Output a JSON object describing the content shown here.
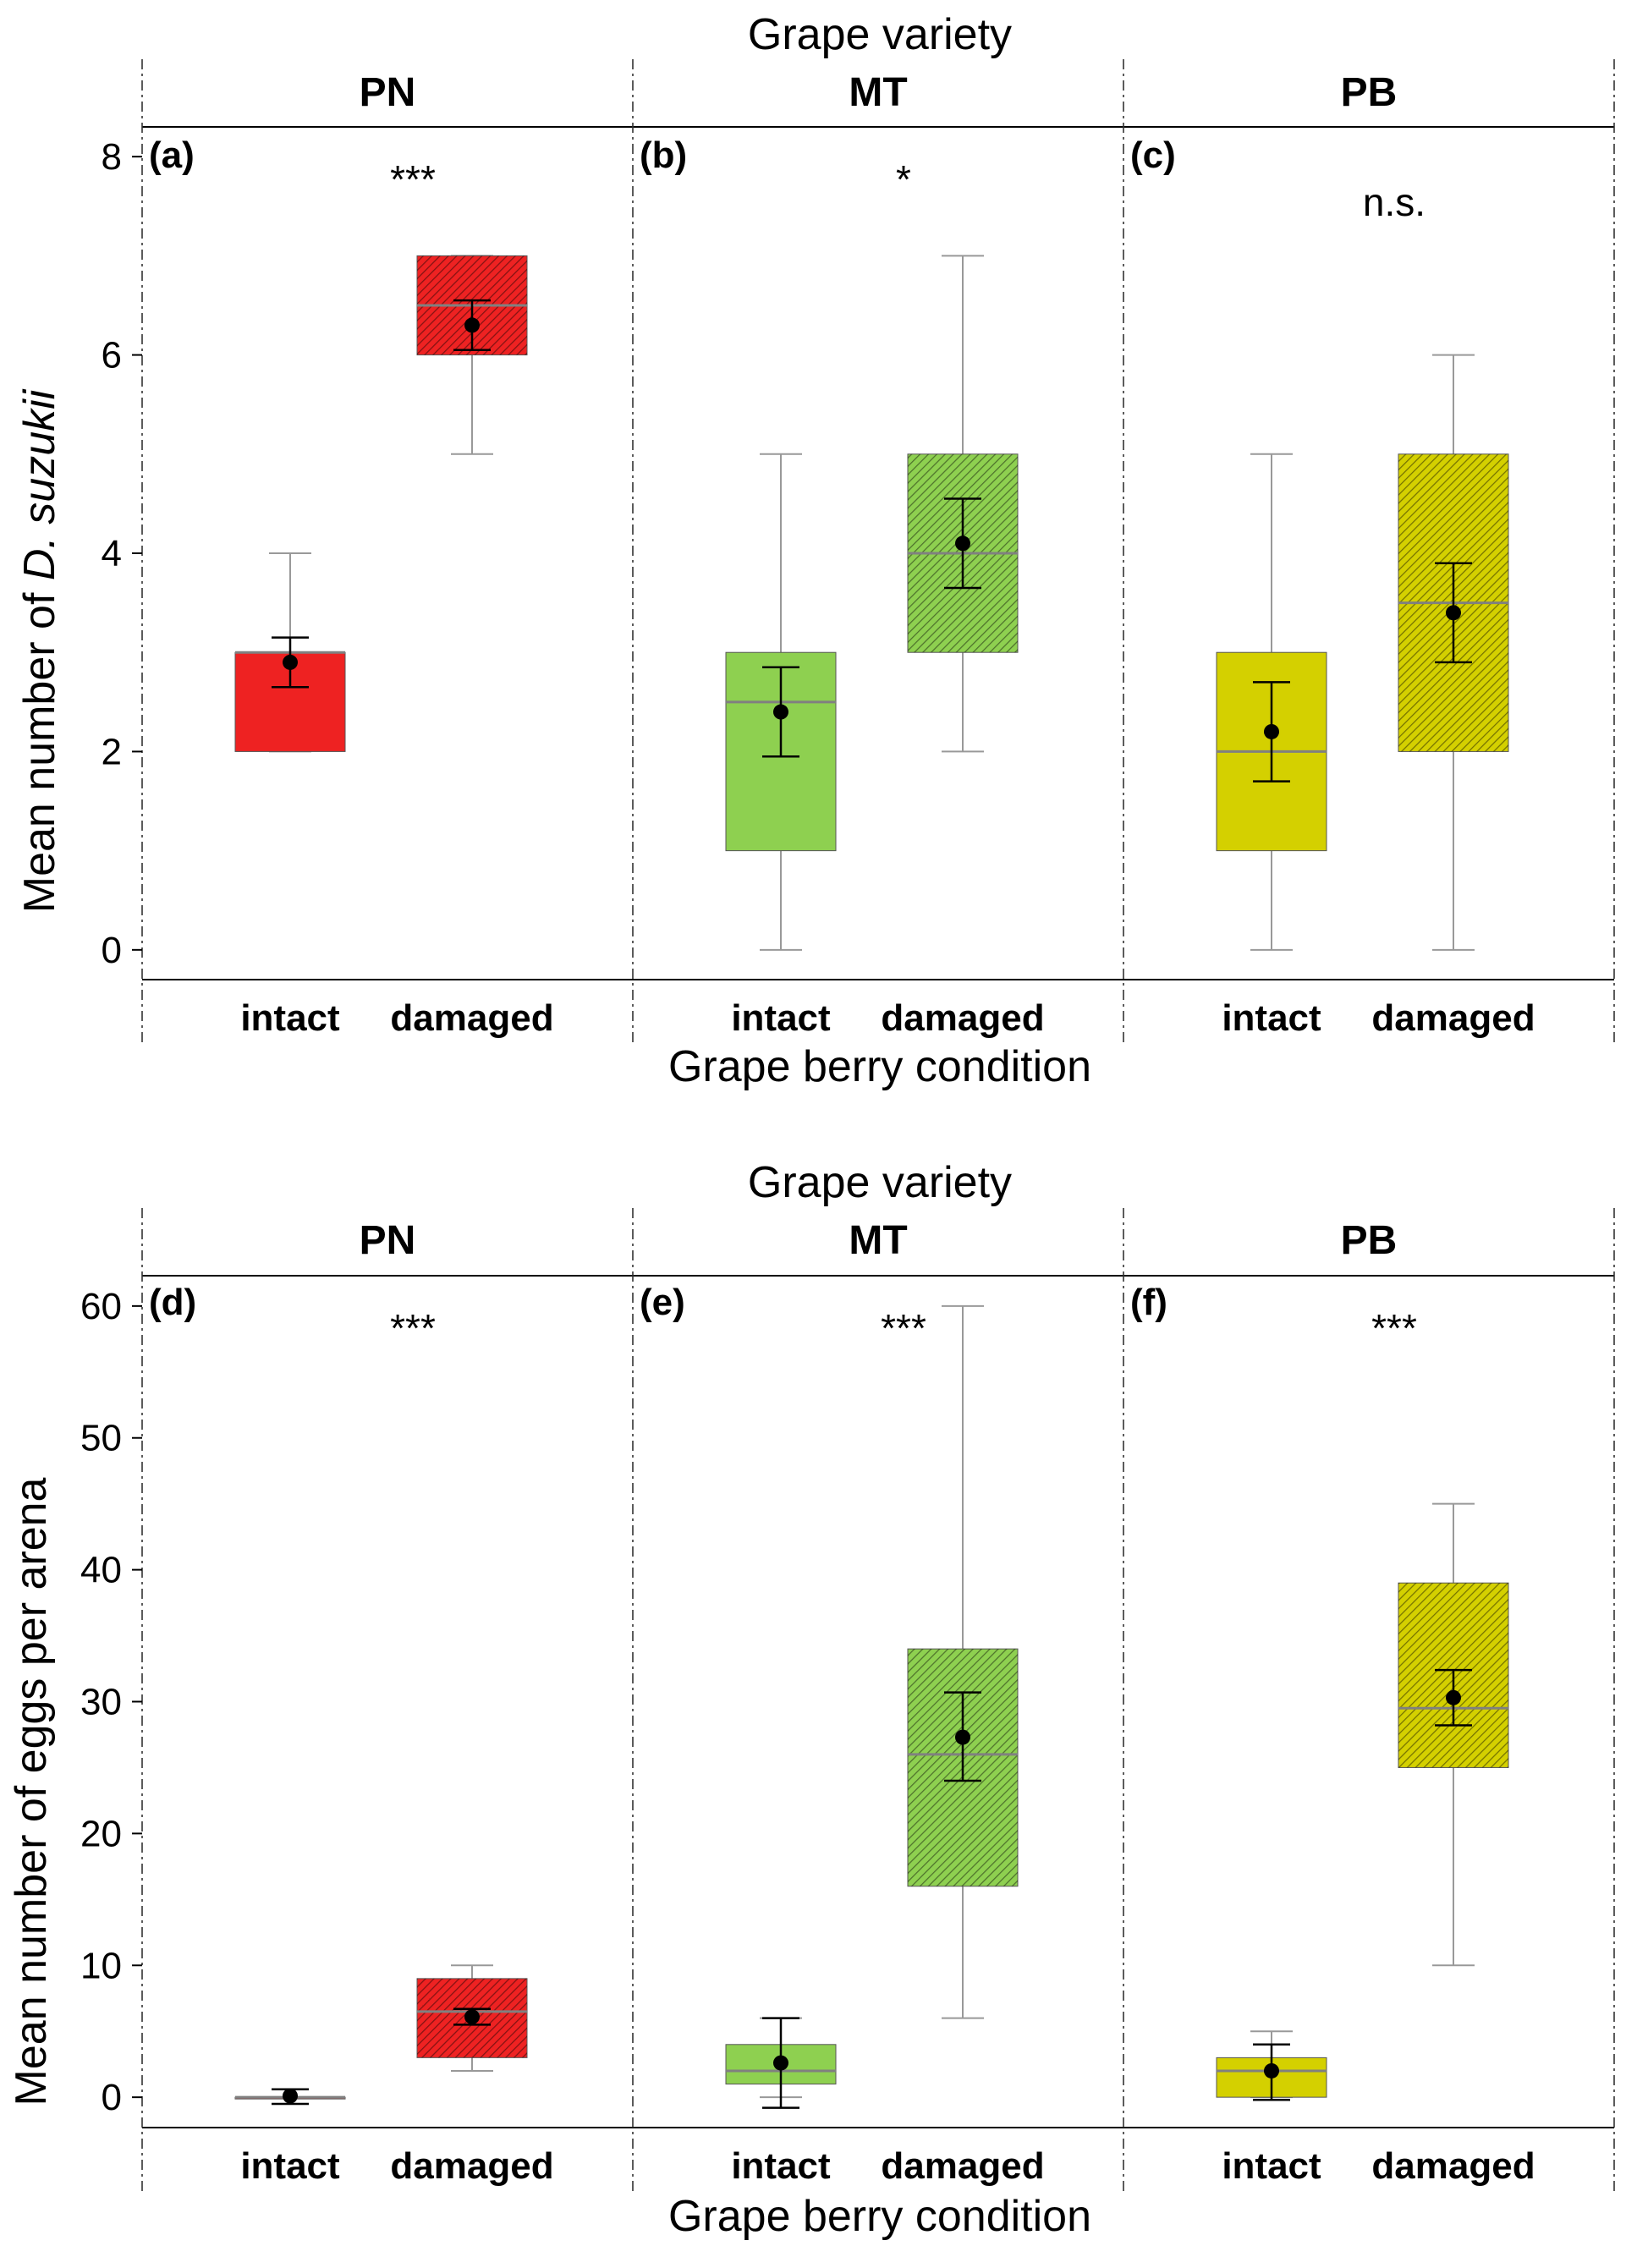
{
  "chart_data": [
    {
      "type": "boxplot",
      "figure_part": "top",
      "title": "Grape variety",
      "xlabel": "Grape berry condition",
      "ylabel_prefix": "Mean number of ",
      "ylabel_italic": "D. suzukii",
      "ylim": [
        -0.3,
        8.3
      ],
      "yticks": [
        0,
        2,
        4,
        6,
        8
      ],
      "categories": [
        "intact",
        "damaged"
      ],
      "panels": [
        {
          "variety": "PN",
          "letter": "(a)",
          "significance": "***",
          "color": "#ee2222",
          "boxes": [
            {
              "condition": "intact",
              "min": 2,
              "q1": 2,
              "median": 3,
              "q3": 3,
              "max": 4,
              "mean": 2.9,
              "err_low": 2.65,
              "err_high": 3.15,
              "hatched": false
            },
            {
              "condition": "damaged",
              "min": 5,
              "q1": 6,
              "median": 6.5,
              "q3": 7,
              "max": 7,
              "mean": 6.3,
              "err_low": 6.05,
              "err_high": 6.55,
              "hatched": true
            }
          ]
        },
        {
          "variety": "MT",
          "letter": "(b)",
          "significance": "*",
          "color": "#8ed050",
          "boxes": [
            {
              "condition": "intact",
              "min": 0,
              "q1": 1,
              "median": 2.5,
              "q3": 3,
              "max": 5,
              "mean": 2.4,
              "err_low": 1.95,
              "err_high": 2.85,
              "hatched": false
            },
            {
              "condition": "damaged",
              "min": 2,
              "q1": 3,
              "median": 4,
              "q3": 5,
              "max": 7,
              "mean": 4.1,
              "err_low": 3.65,
              "err_high": 4.55,
              "hatched": true
            }
          ]
        },
        {
          "variety": "PB",
          "letter": "(c)",
          "significance": "n.s.",
          "color": "#d4d000",
          "boxes": [
            {
              "condition": "intact",
              "min": 0,
              "q1": 1,
              "median": 2,
              "q3": 3,
              "max": 5,
              "mean": 2.2,
              "err_low": 1.7,
              "err_high": 2.7,
              "hatched": false
            },
            {
              "condition": "damaged",
              "min": 0,
              "q1": 2,
              "median": 3.5,
              "q3": 5,
              "max": 6,
              "mean": 3.4,
              "err_low": 2.9,
              "err_high": 3.9,
              "hatched": true
            }
          ]
        }
      ]
    },
    {
      "type": "boxplot",
      "figure_part": "bottom",
      "title": "Grape variety",
      "xlabel": "Grape berry condition",
      "ylabel_prefix": "Mean number of eggs per arena",
      "ylabel_italic": "",
      "ylim": [
        -2.3,
        62.3
      ],
      "yticks": [
        0,
        10,
        20,
        30,
        40,
        50,
        60
      ],
      "categories": [
        "intact",
        "damaged"
      ],
      "panels": [
        {
          "variety": "PN",
          "letter": "(d)",
          "significance": "***",
          "color": "#ee2222",
          "boxes": [
            {
              "condition": "intact",
              "min": 0,
              "q1": 0,
              "median": 0,
              "q3": 0,
              "max": 0,
              "mean": 0.1,
              "err_low": -0.5,
              "err_high": 0.6,
              "hatched": false
            },
            {
              "condition": "damaged",
              "min": 2,
              "q1": 3,
              "median": 6.5,
              "q3": 9,
              "max": 10,
              "mean": 6.1,
              "err_low": 5.5,
              "err_high": 6.7,
              "hatched": true
            }
          ]
        },
        {
          "variety": "MT",
          "letter": "(e)",
          "significance": "***",
          "color": "#8ed050",
          "boxes": [
            {
              "condition": "intact",
              "min": 0,
              "q1": 1,
              "median": 2,
              "q3": 4,
              "max": 6,
              "mean": 2.6,
              "err_low": -0.8,
              "err_high": 6,
              "hatched": false
            },
            {
              "condition": "damaged",
              "min": 6,
              "q1": 16,
              "median": 26,
              "q3": 34,
              "max": 60,
              "mean": 27.3,
              "err_low": 24,
              "err_high": 30.7,
              "hatched": true
            }
          ]
        },
        {
          "variety": "PB",
          "letter": "(f)",
          "significance": "***",
          "color": "#d4d000",
          "boxes": [
            {
              "condition": "intact",
              "min": 0,
              "q1": 0,
              "median": 2,
              "q3": 3,
              "max": 5,
              "mean": 2,
              "err_low": -0.2,
              "err_high": 4,
              "hatched": false
            },
            {
              "condition": "damaged",
              "min": 10,
              "q1": 25,
              "median": 29.5,
              "q3": 39,
              "max": 45,
              "mean": 30.3,
              "err_low": 28.2,
              "err_high": 32.4,
              "hatched": true
            }
          ]
        }
      ]
    }
  ]
}
